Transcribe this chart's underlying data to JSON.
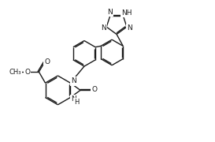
{
  "bg_color": "#ffffff",
  "line_color": "#1a1a1a",
  "line_width": 1.0,
  "font_size": 6.5,
  "fig_width": 2.73,
  "fig_height": 1.8,
  "dpi": 100,
  "xlim": [
    0,
    10
  ],
  "ylim": [
    0,
    6.6
  ]
}
